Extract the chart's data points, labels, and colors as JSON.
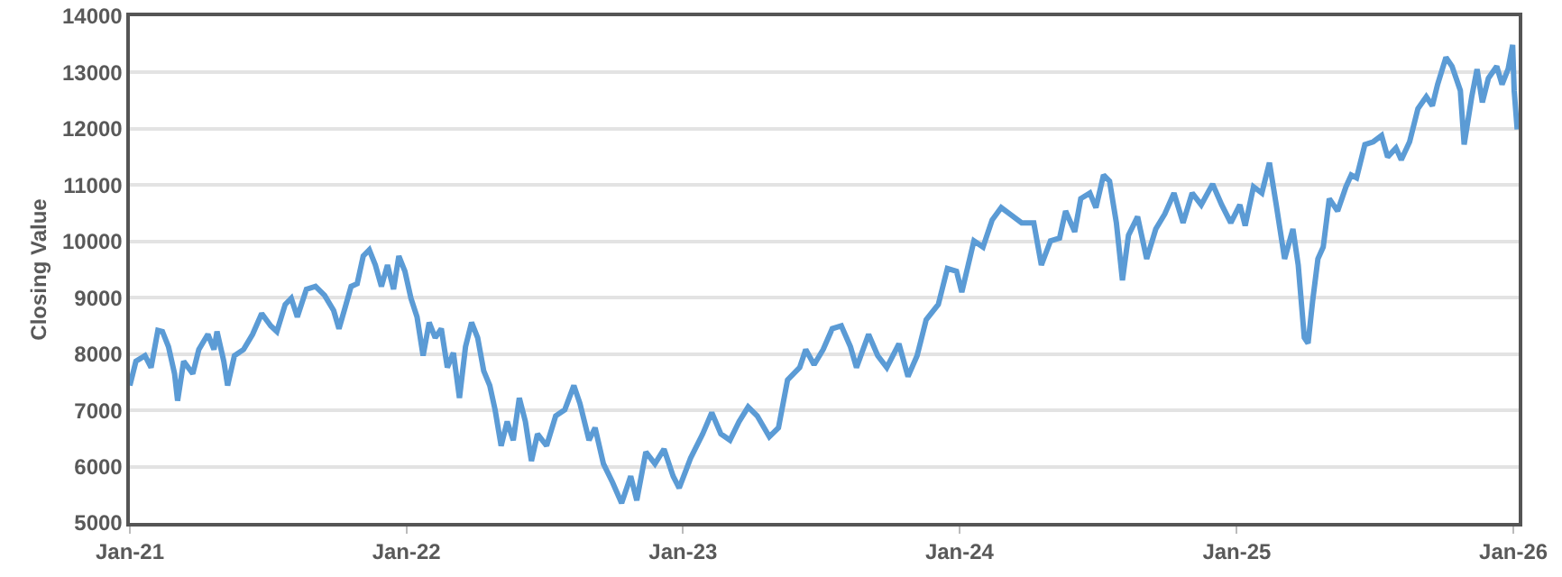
{
  "chart_data": {
    "type": "line",
    "ylabel": "Closing Value",
    "x": [
      "2021-01-01",
      "2021-01-09",
      "2021-01-21",
      "2021-01-29",
      "2021-02-07",
      "2021-02-13",
      "2021-02-21",
      "2021-03-01",
      "2021-03-05",
      "2021-03-13",
      "2021-03-25",
      "2021-04-02",
      "2021-04-14",
      "2021-04-22",
      "2021-04-26",
      "2021-05-05",
      "2021-05-10",
      "2021-05-19",
      "2021-05-31",
      "2021-06-12",
      "2021-06-24",
      "2021-07-06",
      "2021-07-14",
      "2021-07-25",
      "2021-08-02",
      "2021-08-10",
      "2021-08-22",
      "2021-09-03",
      "2021-09-15",
      "2021-09-27",
      "2021-10-04",
      "2021-10-12",
      "2021-10-20",
      "2021-10-28",
      "2021-11-05",
      "2021-11-13",
      "2021-11-21",
      "2021-11-29",
      "2021-12-07",
      "2021-12-15",
      "2021-12-22",
      "2021-12-30",
      "2022-01-07",
      "2022-01-15",
      "2022-01-23",
      "2022-01-31",
      "2022-02-08",
      "2022-02-16",
      "2022-02-24",
      "2022-03-04",
      "2022-03-12",
      "2022-03-20",
      "2022-03-28",
      "2022-04-05",
      "2022-04-13",
      "2022-04-21",
      "2022-04-28",
      "2022-05-06",
      "2022-05-14",
      "2022-05-22",
      "2022-05-30",
      "2022-06-07",
      "2022-06-15",
      "2022-06-23",
      "2022-07-05",
      "2022-07-17",
      "2022-07-29",
      "2022-08-10",
      "2022-08-18",
      "2022-08-30",
      "2022-09-07",
      "2022-09-18",
      "2022-09-30",
      "2022-10-12",
      "2022-10-24",
      "2022-11-01",
      "2022-11-13",
      "2022-11-25",
      "2022-12-07",
      "2022-12-19",
      "2022-12-27",
      "2023-01-11",
      "2023-01-27",
      "2023-02-08",
      "2023-02-20",
      "2023-03-04",
      "2023-03-16",
      "2023-03-28",
      "2023-04-09",
      "2023-04-25",
      "2023-05-07",
      "2023-05-19",
      "2023-06-04",
      "2023-06-12",
      "2023-06-23",
      "2023-07-05",
      "2023-07-17",
      "2023-07-29",
      "2023-08-10",
      "2023-08-18",
      "2023-09-03",
      "2023-09-15",
      "2023-09-27",
      "2023-10-13",
      "2023-10-25",
      "2023-11-06",
      "2023-11-18",
      "2023-12-04",
      "2023-12-16",
      "2023-12-28",
      "2024-01-04",
      "2024-01-20",
      "2024-02-01",
      "2024-02-13",
      "2024-02-25",
      "2024-03-07",
      "2024-03-23",
      "2024-04-08",
      "2024-04-18",
      "2024-04-30",
      "2024-05-12",
      "2024-05-20",
      "2024-06-01",
      "2024-06-09",
      "2024-06-21",
      "2024-06-29",
      "2024-07-09",
      "2024-07-17",
      "2024-07-26",
      "2024-08-03",
      "2024-08-11",
      "2024-08-23",
      "2024-09-04",
      "2024-09-16",
      "2024-09-28",
      "2024-10-10",
      "2024-10-22",
      "2024-11-03",
      "2024-11-15",
      "2024-11-30",
      "2024-12-12",
      "2024-12-24",
      "2025-01-05",
      "2025-01-12",
      "2025-01-23",
      "2025-02-03",
      "2025-02-13",
      "2025-02-22",
      "2025-03-05",
      "2025-03-16",
      "2025-03-23",
      "2025-03-31",
      "2025-04-05",
      "2025-04-11",
      "2025-04-18",
      "2025-04-25",
      "2025-05-03",
      "2025-05-14",
      "2025-05-25",
      "2025-06-01",
      "2025-06-08",
      "2025-06-19",
      "2025-06-30",
      "2025-07-11",
      "2025-07-19",
      "2025-07-30",
      "2025-08-06",
      "2025-08-17",
      "2025-08-28",
      "2025-09-08",
      "2025-09-16",
      "2025-09-23",
      "2025-10-04",
      "2025-10-12",
      "2025-10-23",
      "2025-10-28",
      "2025-11-07",
      "2025-11-14",
      "2025-11-21",
      "2025-11-29",
      "2025-12-10",
      "2025-12-17",
      "2025-12-25",
      "2025-12-31",
      "2026-01-02",
      "2026-01-06"
    ],
    "series": [
      {
        "color": "#5b9bd5",
        "values": [
          7440,
          7870,
          7970,
          7760,
          8420,
          8400,
          8130,
          7650,
          7170,
          7870,
          7650,
          8080,
          8350,
          8080,
          8400,
          7870,
          7440,
          7970,
          8080,
          8350,
          8720,
          8500,
          8400,
          8880,
          8990,
          8660,
          9150,
          9200,
          9040,
          8770,
          8450,
          8820,
          9200,
          9250,
          9740,
          9850,
          9580,
          9200,
          9580,
          9150,
          9740,
          9470,
          8990,
          8660,
          7970,
          8560,
          8290,
          8450,
          7760,
          8020,
          7220,
          8130,
          8560,
          8290,
          7700,
          7440,
          7010,
          6370,
          6800,
          6470,
          7220,
          6800,
          6100,
          6580,
          6370,
          6900,
          7010,
          7440,
          7120,
          6470,
          6690,
          6050,
          5720,
          5350,
          5830,
          5400,
          6260,
          6050,
          6310,
          5830,
          5620,
          6150,
          6580,
          6960,
          6580,
          6470,
          6800,
          7060,
          6900,
          6530,
          6690,
          7540,
          7760,
          8080,
          7810,
          8080,
          8450,
          8500,
          8130,
          7760,
          8350,
          7970,
          7760,
          8180,
          7600,
          7970,
          8610,
          8880,
          9520,
          9470,
          9100,
          10010,
          9900,
          10380,
          10600,
          10490,
          10330,
          10330,
          9580,
          10010,
          10060,
          10540,
          10170,
          10760,
          10860,
          10600,
          11180,
          11070,
          10330,
          9310,
          10110,
          10440,
          9690,
          10220,
          10490,
          10860,
          10330,
          10860,
          10650,
          11020,
          10650,
          10330,
          10650,
          10280,
          10970,
          10860,
          11400,
          10650,
          9690,
          10220,
          9580,
          8290,
          8190,
          8940,
          9690,
          9900,
          10760,
          10540,
          10970,
          11180,
          11130,
          11720,
          11770,
          11880,
          11500,
          11660,
          11450,
          11770,
          12360,
          12570,
          12410,
          12790,
          13270,
          13110,
          12680,
          11720,
          12570,
          13060,
          12470,
          12900,
          13110,
          12790,
          13060,
          13490,
          12680,
          11990
        ]
      }
    ],
    "xlim": [
      "2021-01-01",
      "2026-01-08"
    ],
    "xticks": [
      {
        "value": "2021-01-01",
        "label": "Jan-21"
      },
      {
        "value": "2022-01-01",
        "label": "Jan-22"
      },
      {
        "value": "2023-01-01",
        "label": "Jan-23"
      },
      {
        "value": "2024-01-01",
        "label": "Jan-24"
      },
      {
        "value": "2025-01-01",
        "label": "Jan-25"
      },
      {
        "value": "2026-01-01",
        "label": "Jan-26"
      }
    ],
    "ylim": [
      5000,
      14000
    ],
    "yticks": [
      5000,
      6000,
      7000,
      8000,
      9000,
      10000,
      11000,
      12000,
      13000,
      14000
    ],
    "grid": "y",
    "marker": "none",
    "line_style": "solid"
  }
}
